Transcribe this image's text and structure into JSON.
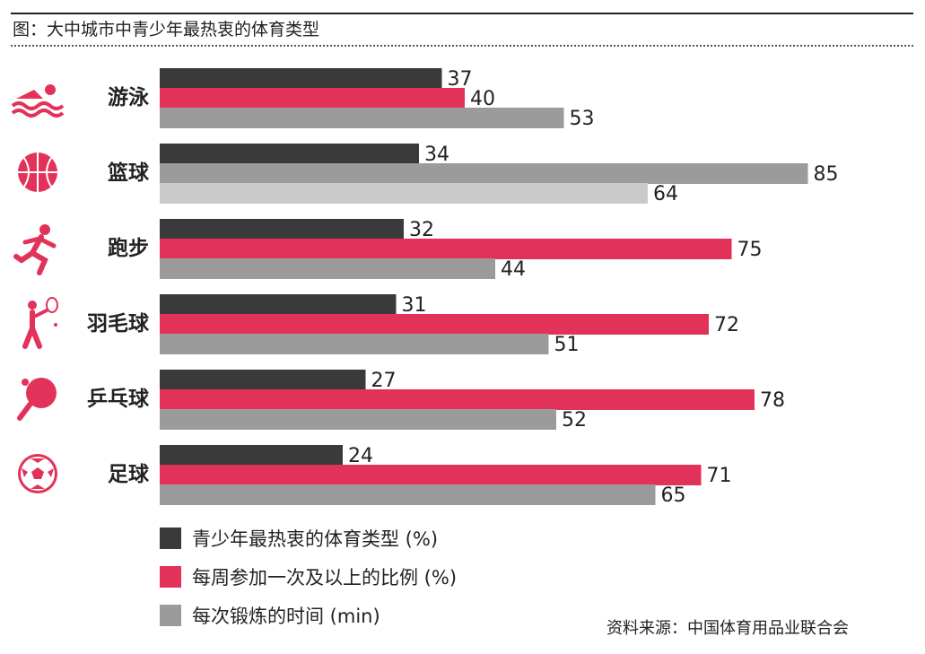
{
  "header": {
    "title": "图：大中城市中青少年最热衷的体育类型"
  },
  "source": {
    "text": "资料来源：中国体育用品业联合会"
  },
  "colors": {
    "dark": "#3a3a3a",
    "pink": "#e3325a",
    "gray": "#9b9b9b",
    "lightgray": "#c9c9c9",
    "icon": "#e3325a"
  },
  "chart_data": {
    "type": "bar",
    "orientation": "horizontal",
    "categories": [
      "游泳",
      "篮球",
      "跑步",
      "羽毛球",
      "乒乓球",
      "足球"
    ],
    "icons": [
      "swimmer-icon",
      "basketball-icon",
      "runner-icon",
      "badminton-icon",
      "table-tennis-icon",
      "soccer-ball-icon"
    ],
    "series": [
      {
        "name": "青少年最热衷的体育类型 (%)",
        "values": [
          37,
          34,
          32,
          31,
          27,
          24
        ]
      },
      {
        "name": "每周参加一次及以上的比例 (%)",
        "values": [
          40,
          85,
          75,
          72,
          78,
          71
        ]
      },
      {
        "name": "每次锻炼的时间 (min)",
        "values": [
          53,
          64,
          44,
          51,
          52,
          65
        ]
      }
    ],
    "bar_colors": [
      [
        "dark",
        "pink",
        "gray"
      ],
      [
        "dark",
        "gray",
        "lightgray"
      ],
      [
        "dark",
        "pink",
        "gray"
      ],
      [
        "dark",
        "pink",
        "gray"
      ],
      [
        "dark",
        "pink",
        "gray"
      ],
      [
        "dark",
        "pink",
        "gray"
      ]
    ],
    "legend_position": "bottom-left",
    "grid": false
  }
}
